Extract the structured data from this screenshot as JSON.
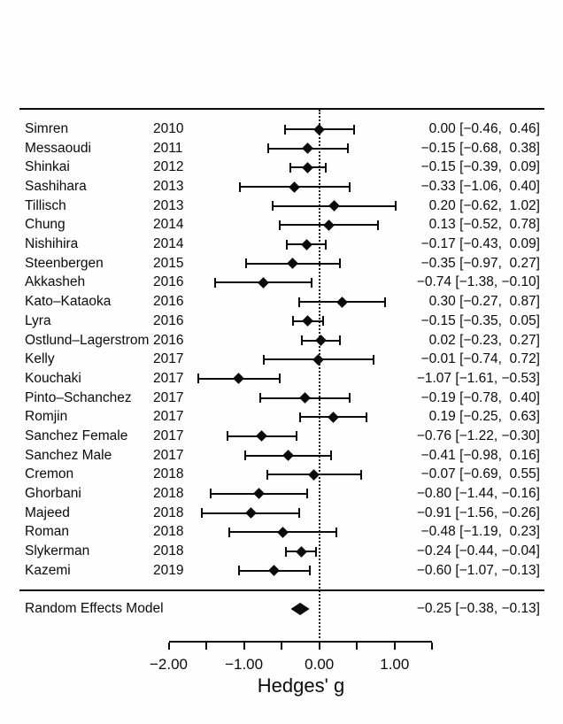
{
  "chart_data": {
    "type": "scatter",
    "subtype": "forest-plot",
    "title": "",
    "xlabel": "Hedges' g",
    "effect_measure": "Hedges' g",
    "zero_line": 0.0,
    "xlim": [
      -2.0,
      1.5
    ],
    "axis": {
      "ticks": [
        {
          "value": -2.0,
          "label": "−2.00"
        },
        {
          "value": -1.5,
          "label": ""
        },
        {
          "value": -1.0,
          "label": "−1.00"
        },
        {
          "value": -0.5,
          "label": ""
        },
        {
          "value": 0.0,
          "label": "0.00"
        },
        {
          "value": 0.5,
          "label": ""
        },
        {
          "value": 1.0,
          "label": "1.00"
        },
        {
          "value": 1.5,
          "label": ""
        }
      ]
    },
    "studies": [
      {
        "name": "Simren",
        "year": "2010",
        "estimate": 0.0,
        "lower": -0.46,
        "upper": 0.46,
        "display": "0.00 [−0.46,  0.46]"
      },
      {
        "name": "Messaoudi",
        "year": "2011",
        "estimate": -0.15,
        "lower": -0.68,
        "upper": 0.38,
        "display": "−0.15 [−0.68,  0.38]"
      },
      {
        "name": "Shinkai",
        "year": "2012",
        "estimate": -0.15,
        "lower": -0.39,
        "upper": 0.09,
        "display": "−0.15 [−0.39,  0.09]"
      },
      {
        "name": "Sashihara",
        "year": "2013",
        "estimate": -0.33,
        "lower": -1.06,
        "upper": 0.4,
        "display": "−0.33 [−1.06,  0.40]"
      },
      {
        "name": "Tillisch",
        "year": "2013",
        "estimate": 0.2,
        "lower": -0.62,
        "upper": 1.02,
        "display": "0.20 [−0.62,  1.02]"
      },
      {
        "name": "Chung",
        "year": "2014",
        "estimate": 0.13,
        "lower": -0.52,
        "upper": 0.78,
        "display": "0.13 [−0.52,  0.78]"
      },
      {
        "name": "Nishihira",
        "year": "2014",
        "estimate": -0.17,
        "lower": -0.43,
        "upper": 0.09,
        "display": "−0.17 [−0.43,  0.09]"
      },
      {
        "name": "Steenbergen",
        "year": "2015",
        "estimate": -0.35,
        "lower": -0.97,
        "upper": 0.27,
        "display": "−0.35 [−0.97,  0.27]"
      },
      {
        "name": "Akkasheh",
        "year": "2016",
        "estimate": -0.74,
        "lower": -1.38,
        "upper": -0.1,
        "display": "−0.74 [−1.38, −0.10]"
      },
      {
        "name": "Kato–Kataoka",
        "year": "2016",
        "estimate": 0.3,
        "lower": -0.27,
        "upper": 0.87,
        "display": "0.30 [−0.27,  0.87]"
      },
      {
        "name": "Lyra",
        "year": "2016",
        "estimate": -0.15,
        "lower": -0.35,
        "upper": 0.05,
        "display": "−0.15 [−0.35,  0.05]"
      },
      {
        "name": "Ostlund–Lagerstrom",
        "year": "2016",
        "estimate": 0.02,
        "lower": -0.23,
        "upper": 0.27,
        "display": "0.02 [−0.23,  0.27]"
      },
      {
        "name": "Kelly",
        "year": "2017",
        "estimate": -0.01,
        "lower": -0.74,
        "upper": 0.72,
        "display": "−0.01 [−0.74,  0.72]"
      },
      {
        "name": "Kouchaki",
        "year": "2017",
        "estimate": -1.07,
        "lower": -1.61,
        "upper": -0.53,
        "display": "−1.07 [−1.61, −0.53]"
      },
      {
        "name": "Pinto–Schanchez",
        "year": "2017",
        "estimate": -0.19,
        "lower": -0.78,
        "upper": 0.4,
        "display": "−0.19 [−0.78,  0.40]"
      },
      {
        "name": "Romjin",
        "year": "2017",
        "estimate": 0.19,
        "lower": -0.25,
        "upper": 0.63,
        "display": "0.19 [−0.25,  0.63]"
      },
      {
        "name": "Sanchez Female",
        "year": "2017",
        "estimate": -0.76,
        "lower": -1.22,
        "upper": -0.3,
        "display": "−0.76 [−1.22, −0.30]"
      },
      {
        "name": "Sanchez Male",
        "year": "2017",
        "estimate": -0.41,
        "lower": -0.98,
        "upper": 0.16,
        "display": "−0.41 [−0.98,  0.16]"
      },
      {
        "name": "Cremon",
        "year": "2018",
        "estimate": -0.07,
        "lower": -0.69,
        "upper": 0.55,
        "display": "−0.07 [−0.69,  0.55]"
      },
      {
        "name": "Ghorbani",
        "year": "2018",
        "estimate": -0.8,
        "lower": -1.44,
        "upper": -0.16,
        "display": "−0.80 [−1.44, −0.16]"
      },
      {
        "name": "Majeed",
        "year": "2018",
        "estimate": -0.91,
        "lower": -1.56,
        "upper": -0.26,
        "display": "−0.91 [−1.56, −0.26]"
      },
      {
        "name": "Roman",
        "year": "2018",
        "estimate": -0.48,
        "lower": -1.19,
        "upper": 0.23,
        "display": "−0.48 [−1.19,  0.23]"
      },
      {
        "name": "Slykerman",
        "year": "2018",
        "estimate": -0.24,
        "lower": -0.44,
        "upper": -0.04,
        "display": "−0.24 [−0.44, −0.04]"
      },
      {
        "name": "Kazemi",
        "year": "2019",
        "estimate": -0.6,
        "lower": -1.07,
        "upper": -0.13,
        "display": "−0.60 [−1.07, −0.13]"
      }
    ],
    "summary": {
      "label": "Random Effects Model",
      "estimate": -0.25,
      "lower": -0.38,
      "upper": -0.13,
      "display": "−0.25 [−0.38, −0.13]"
    },
    "colors": {
      "marker": "#0b0b0b",
      "line": "#0b0b0b",
      "background": "#fefefe"
    }
  }
}
